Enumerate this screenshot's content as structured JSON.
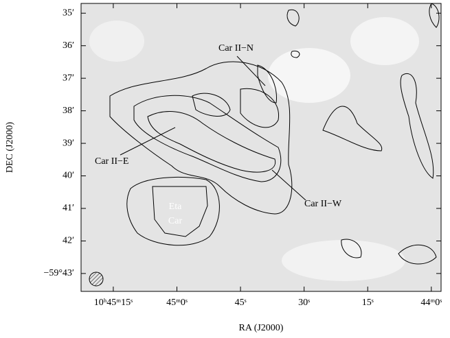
{
  "chart_data": {
    "type": "image",
    "xlabel": "RA (J2000)",
    "ylabel": "DEC (J2000)",
    "xlim": [
      82.6,
      -2.3
    ],
    "ylim": [
      43.55,
      34.7
    ],
    "xticks": [
      {
        "value": 75,
        "label": "10ʰ45ᵐ15ˢ"
      },
      {
        "value": 60,
        "label": "45ᵐ0ˢ"
      },
      {
        "value": 45,
        "label": "45ˢ"
      },
      {
        "value": 30,
        "label": "30ˢ"
      },
      {
        "value": 15,
        "label": "15ˢ"
      },
      {
        "value": 0,
        "label": "44ᵐ0ˢ"
      }
    ],
    "yticks": [
      {
        "value": 35,
        "label": "35′"
      },
      {
        "value": 36,
        "label": "36′"
      },
      {
        "value": 37,
        "label": "37′"
      },
      {
        "value": 38,
        "label": "38′"
      },
      {
        "value": 39,
        "label": "39′"
      },
      {
        "value": 40,
        "label": "40′"
      },
      {
        "value": 41,
        "label": "41′"
      },
      {
        "value": 42,
        "label": "42′"
      },
      {
        "value": 43,
        "label": "−59°43′"
      }
    ],
    "annotations": [
      "Car II−N",
      "Car II−E",
      "Car II−W",
      "Eta",
      "Car"
    ]
  }
}
